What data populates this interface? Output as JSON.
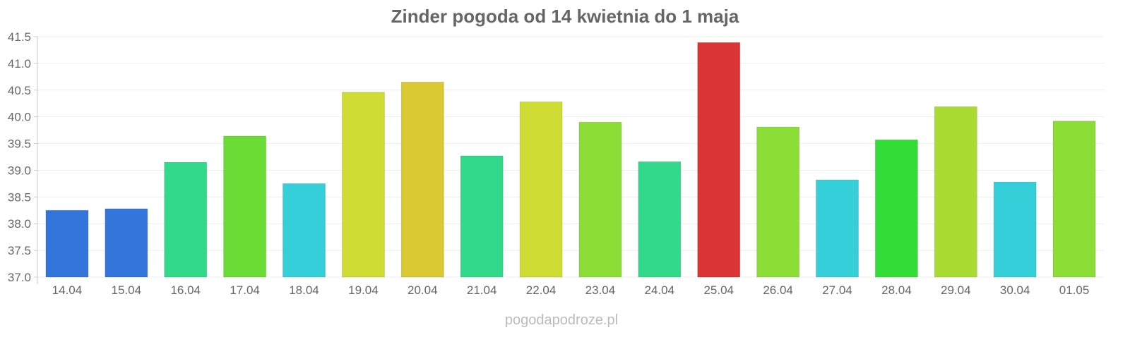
{
  "chart_data": {
    "type": "bar",
    "title": "Zinder pogoda od 14 kwietnia do 1 maja",
    "xlabel": "",
    "ylabel": "",
    "ylim": [
      37.0,
      41.5
    ],
    "yticks": [
      "37.0",
      "37.5",
      "38.0",
      "38.5",
      "39.0",
      "39.5",
      "40.0",
      "40.5",
      "41.0",
      "41.5"
    ],
    "grid": true,
    "categories": [
      "14.04",
      "15.04",
      "16.04",
      "17.04",
      "18.04",
      "19.04",
      "20.04",
      "21.04",
      "22.04",
      "23.04",
      "24.04",
      "25.04",
      "26.04",
      "27.04",
      "28.04",
      "29.04",
      "30.04",
      "01.05"
    ],
    "values": [
      38.25,
      38.28,
      39.15,
      39.64,
      38.75,
      40.46,
      40.65,
      39.27,
      40.28,
      39.9,
      39.16,
      41.39,
      39.81,
      38.82,
      39.57,
      40.19,
      38.78,
      39.92
    ],
    "colors": [
      "#3475db",
      "#3475db",
      "#33d98a",
      "#6bdb36",
      "#35cfd9",
      "#cedc33",
      "#dbc933",
      "#33d98a",
      "#cedc33",
      "#8cdd36",
      "#33d98a",
      "#db3434",
      "#8cdd36",
      "#35cfd9",
      "#33dd37",
      "#a9db33",
      "#35cfd9",
      "#8cdd36"
    ]
  },
  "watermark": "pogodapodroze.pl"
}
